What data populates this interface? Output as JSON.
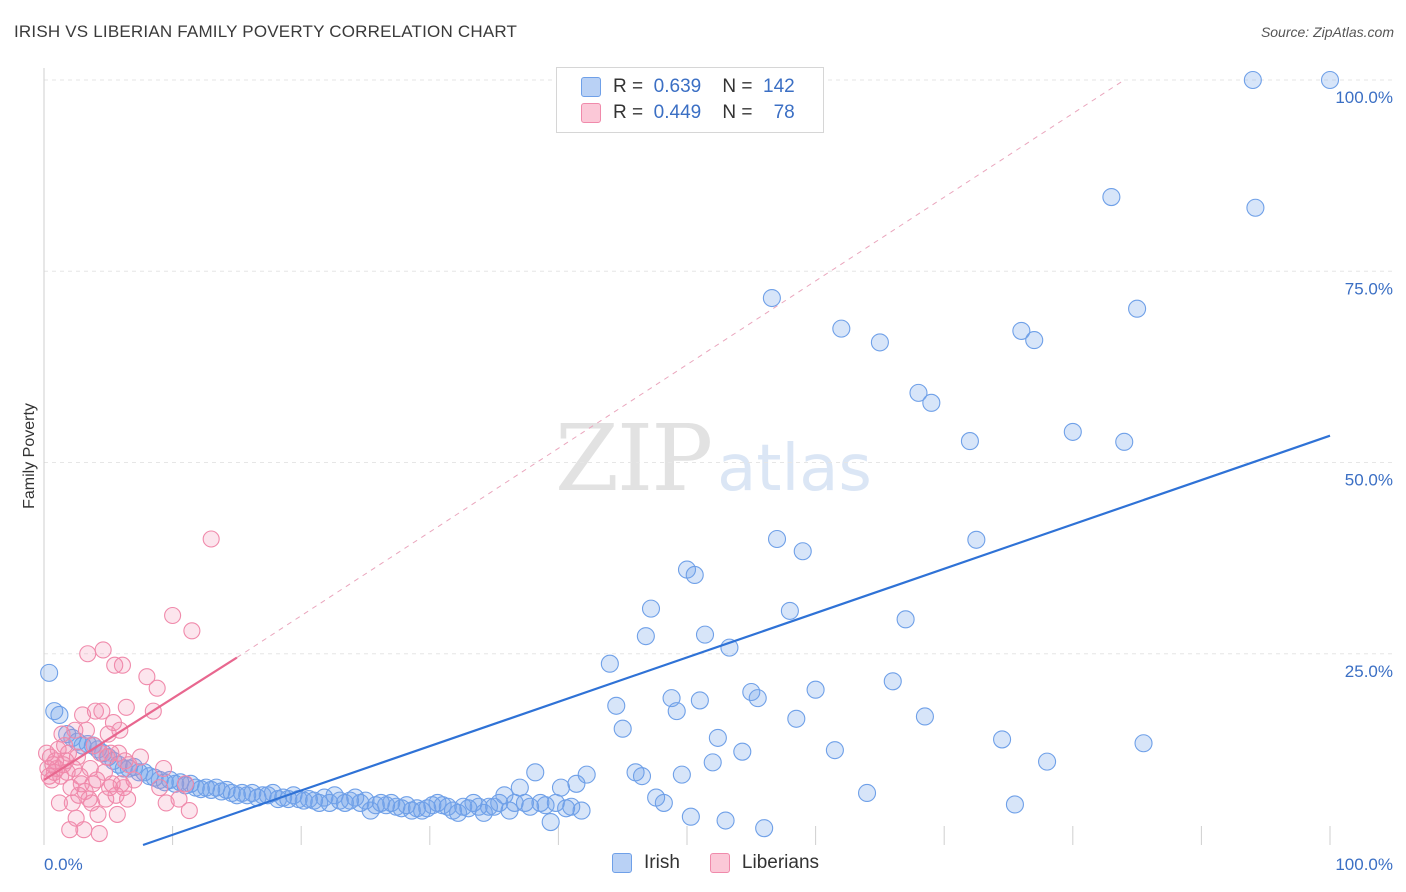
{
  "header": {
    "title": "IRISH VS LIBERIAN FAMILY POVERTY CORRELATION CHART",
    "source": "Source: ZipAtlas.com"
  },
  "legend": {
    "rows": [
      {
        "r_label": "R =",
        "r_value": "0.639",
        "n_label": "N =",
        "n_value": "142",
        "color": "#6fa0e8"
      },
      {
        "r_label": "R =",
        "r_value": "0.449",
        "n_label": "N =",
        "n_value": "78",
        "color": "#f08aab"
      }
    ]
  },
  "bottom_legend": [
    {
      "label": "Irish",
      "color": "#6fa0e8"
    },
    {
      "label": "Liberians",
      "color": "#f08aab"
    }
  ],
  "watermark": {
    "zip": "ZIP",
    "atlas": "atlas"
  },
  "chart_data": {
    "type": "scatter",
    "title": "IRISH VS LIBERIAN FAMILY POVERTY CORRELATION CHART",
    "xlabel": "",
    "ylabel": "Family Poverty",
    "xlim": [
      0,
      100
    ],
    "ylim": [
      0,
      100
    ],
    "x_tick_labels": [
      "0.0%",
      "100.0%"
    ],
    "y_tick_labels": [
      "25.0%",
      "50.0%",
      "75.0%",
      "100.0%"
    ],
    "y_ticks": [
      25,
      50,
      75,
      100
    ],
    "grid": true,
    "legend_position": "top-center",
    "series": [
      {
        "name": "Irish",
        "color": "#6fa0e8",
        "trend": {
          "x": [
            7.7,
            100
          ],
          "y": [
            0,
            53.5
          ]
        },
        "points": [
          [
            0.4,
            22.5
          ],
          [
            0.8,
            17.5
          ],
          [
            1.2,
            17
          ],
          [
            1.8,
            14.5
          ],
          [
            2.2,
            14
          ],
          [
            2.6,
            13.5
          ],
          [
            3,
            13
          ],
          [
            3.4,
            13.2
          ],
          [
            3.8,
            13
          ],
          [
            4.2,
            12.5
          ],
          [
            4.6,
            12
          ],
          [
            5,
            11.5
          ],
          [
            5.4,
            11
          ],
          [
            5.8,
            10.5
          ],
          [
            6.2,
            10
          ],
          [
            6.6,
            10
          ],
          [
            7,
            10.2
          ],
          [
            7.4,
            9.5
          ],
          [
            7.8,
            9.5
          ],
          [
            8.2,
            9
          ],
          [
            8.6,
            8.8
          ],
          [
            9,
            8.5
          ],
          [
            9.4,
            8.2
          ],
          [
            9.8,
            8.5
          ],
          [
            10.2,
            8
          ],
          [
            10.6,
            8.2
          ],
          [
            11,
            7.8
          ],
          [
            11.4,
            8
          ],
          [
            11.8,
            7.5
          ],
          [
            12.2,
            7.3
          ],
          [
            12.6,
            7.5
          ],
          [
            13,
            7.2
          ],
          [
            13.4,
            7.5
          ],
          [
            13.8,
            7
          ],
          [
            14.2,
            7.2
          ],
          [
            14.6,
            6.8
          ],
          [
            15,
            6.5
          ],
          [
            15.4,
            6.8
          ],
          [
            15.8,
            6.5
          ],
          [
            16.2,
            6.8
          ],
          [
            16.6,
            6.2
          ],
          [
            17,
            6.5
          ],
          [
            17.4,
            6.5
          ],
          [
            17.8,
            6.8
          ],
          [
            18.2,
            6
          ],
          [
            18.6,
            6.2
          ],
          [
            19,
            6
          ],
          [
            19.4,
            6.5
          ],
          [
            19.8,
            6
          ],
          [
            20.2,
            5.8
          ],
          [
            20.6,
            6
          ],
          [
            21,
            5.8
          ],
          [
            21.4,
            5.5
          ],
          [
            21.8,
            6.2
          ],
          [
            22.2,
            5.5
          ],
          [
            22.6,
            6.5
          ],
          [
            23,
            5.8
          ],
          [
            23.4,
            5.5
          ],
          [
            23.8,
            5.8
          ],
          [
            24.2,
            6.2
          ],
          [
            24.6,
            5.5
          ],
          [
            25,
            5.8
          ],
          [
            25.4,
            4.5
          ],
          [
            25.8,
            5.2
          ],
          [
            26.2,
            5.5
          ],
          [
            26.6,
            5.2
          ],
          [
            27,
            5.5
          ],
          [
            27.4,
            5
          ],
          [
            27.8,
            4.8
          ],
          [
            28.2,
            5.2
          ],
          [
            28.6,
            4.5
          ],
          [
            29,
            4.8
          ],
          [
            29.4,
            4.5
          ],
          [
            29.8,
            4.8
          ],
          [
            30.2,
            5.2
          ],
          [
            30.6,
            5.5
          ],
          [
            31,
            5.2
          ],
          [
            31.4,
            5
          ],
          [
            31.8,
            4.5
          ],
          [
            32.2,
            4.2
          ],
          [
            32.6,
            5
          ],
          [
            33,
            4.8
          ],
          [
            33.4,
            5.5
          ],
          [
            33.8,
            5
          ],
          [
            34.2,
            4.2
          ],
          [
            34.6,
            5
          ],
          [
            35,
            5
          ],
          [
            35.4,
            5.5
          ],
          [
            35.8,
            6.5
          ],
          [
            36.2,
            4.5
          ],
          [
            36.6,
            5.5
          ],
          [
            37,
            7.5
          ],
          [
            37.4,
            5.5
          ],
          [
            37.8,
            5
          ],
          [
            38.2,
            9.5
          ],
          [
            38.6,
            5.5
          ],
          [
            39,
            5.2
          ],
          [
            39.4,
            3
          ],
          [
            39.8,
            5.5
          ],
          [
            40.2,
            7.5
          ],
          [
            40.6,
            4.8
          ],
          [
            41,
            5
          ],
          [
            41.4,
            8
          ],
          [
            41.8,
            4.5
          ],
          [
            42.2,
            9.2
          ],
          [
            44,
            23.7
          ],
          [
            44.5,
            18.2
          ],
          [
            45,
            15.2
          ],
          [
            46,
            9.5
          ],
          [
            46.5,
            9
          ],
          [
            46.8,
            27.3
          ],
          [
            47.2,
            30.9
          ],
          [
            47.6,
            6.2
          ],
          [
            48.2,
            5.5
          ],
          [
            48.8,
            19.2
          ],
          [
            49.2,
            17.5
          ],
          [
            49.6,
            9.2
          ],
          [
            50,
            36
          ],
          [
            50.3,
            3.7
          ],
          [
            50.6,
            35.3
          ],
          [
            51,
            18.9
          ],
          [
            51.4,
            27.5
          ],
          [
            52,
            10.8
          ],
          [
            52.4,
            14
          ],
          [
            53,
            3.2
          ],
          [
            53.3,
            25.8
          ],
          [
            54.3,
            12.2
          ],
          [
            55,
            20
          ],
          [
            55.5,
            19.2
          ],
          [
            56,
            2.2
          ],
          [
            56.6,
            71.5
          ],
          [
            57,
            40
          ],
          [
            58,
            30.6
          ],
          [
            58.5,
            16.5
          ],
          [
            59,
            38.4
          ],
          [
            60,
            20.3
          ],
          [
            61.5,
            12.4
          ],
          [
            62,
            67.5
          ],
          [
            64,
            6.8
          ],
          [
            65,
            65.7
          ],
          [
            66,
            21.4
          ],
          [
            67,
            29.5
          ],
          [
            68,
            59.1
          ],
          [
            68.5,
            16.8
          ],
          [
            69,
            57.8
          ],
          [
            72,
            52.8
          ],
          [
            72.5,
            39.9
          ],
          [
            74.5,
            13.8
          ],
          [
            75.5,
            5.3
          ],
          [
            76,
            67.2
          ],
          [
            77,
            66
          ],
          [
            78,
            10.9
          ],
          [
            80,
            54
          ],
          [
            83,
            84.7
          ],
          [
            84,
            52.7
          ],
          [
            85,
            70.1
          ],
          [
            85.5,
            13.3
          ],
          [
            94,
            100
          ],
          [
            94.2,
            83.3
          ],
          [
            100,
            100
          ]
        ]
      },
      {
        "name": "Liberians",
        "color": "#f08aab",
        "trend": {
          "x": [
            0,
            15
          ],
          "y": [
            8.5,
            24.5
          ]
        },
        "trend_extended": {
          "x": [
            15,
            84
          ],
          "y": [
            24.5,
            100
          ]
        },
        "points": [
          [
            0.2,
            12
          ],
          [
            0.3,
            10
          ],
          [
            0.4,
            9
          ],
          [
            0.5,
            11.5
          ],
          [
            0.6,
            8.5
          ],
          [
            0.7,
            10.5
          ],
          [
            0.8,
            9.5
          ],
          [
            0.9,
            11
          ],
          [
            1,
            10
          ],
          [
            1.1,
            12.5
          ],
          [
            1.2,
            5.5
          ],
          [
            1.3,
            9
          ],
          [
            1.4,
            14.5
          ],
          [
            1.5,
            10.5
          ],
          [
            1.6,
            13
          ],
          [
            1.7,
            11
          ],
          [
            1.8,
            9.5
          ],
          [
            1.9,
            12
          ],
          [
            2,
            2
          ],
          [
            2.1,
            7.5
          ],
          [
            2.2,
            5.5
          ],
          [
            2.3,
            10
          ],
          [
            2.4,
            15
          ],
          [
            2.5,
            3.5
          ],
          [
            2.6,
            11.5
          ],
          [
            2.7,
            6.5
          ],
          [
            2.8,
            9
          ],
          [
            2.9,
            8
          ],
          [
            3,
            17
          ],
          [
            3.1,
            2
          ],
          [
            3.2,
            7
          ],
          [
            3.3,
            15
          ],
          [
            3.4,
            25
          ],
          [
            3.5,
            6
          ],
          [
            3.6,
            10
          ],
          [
            3.7,
            5.5
          ],
          [
            3.8,
            8
          ],
          [
            3.9,
            13
          ],
          [
            4,
            17.5
          ],
          [
            4.1,
            8.5
          ],
          [
            4.2,
            4
          ],
          [
            4.3,
            1.5
          ],
          [
            4.4,
            12
          ],
          [
            4.5,
            17.5
          ],
          [
            4.6,
            25.5
          ],
          [
            4.7,
            9.5
          ],
          [
            4.8,
            6
          ],
          [
            4.9,
            11.5
          ],
          [
            5,
            14.5
          ],
          [
            5.1,
            7.5
          ],
          [
            5.2,
            12
          ],
          [
            5.3,
            8
          ],
          [
            5.4,
            16
          ],
          [
            5.5,
            23.5
          ],
          [
            5.6,
            6.5
          ],
          [
            5.7,
            4
          ],
          [
            5.8,
            12
          ],
          [
            5.9,
            15
          ],
          [
            6,
            8
          ],
          [
            6.1,
            23.5
          ],
          [
            6.2,
            7.5
          ],
          [
            6.3,
            11
          ],
          [
            6.4,
            18
          ],
          [
            6.5,
            6
          ],
          [
            6.6,
            10.5
          ],
          [
            7,
            8.5
          ],
          [
            7.5,
            11.5
          ],
          [
            8,
            22
          ],
          [
            8.5,
            17.5
          ],
          [
            8.8,
            20.5
          ],
          [
            9,
            7.5
          ],
          [
            9.3,
            10
          ],
          [
            9.5,
            5.5
          ],
          [
            10,
            30
          ],
          [
            10.5,
            6
          ],
          [
            11,
            8
          ],
          [
            11.3,
            4.5
          ],
          [
            11.5,
            28
          ],
          [
            13,
            40
          ]
        ]
      }
    ]
  }
}
